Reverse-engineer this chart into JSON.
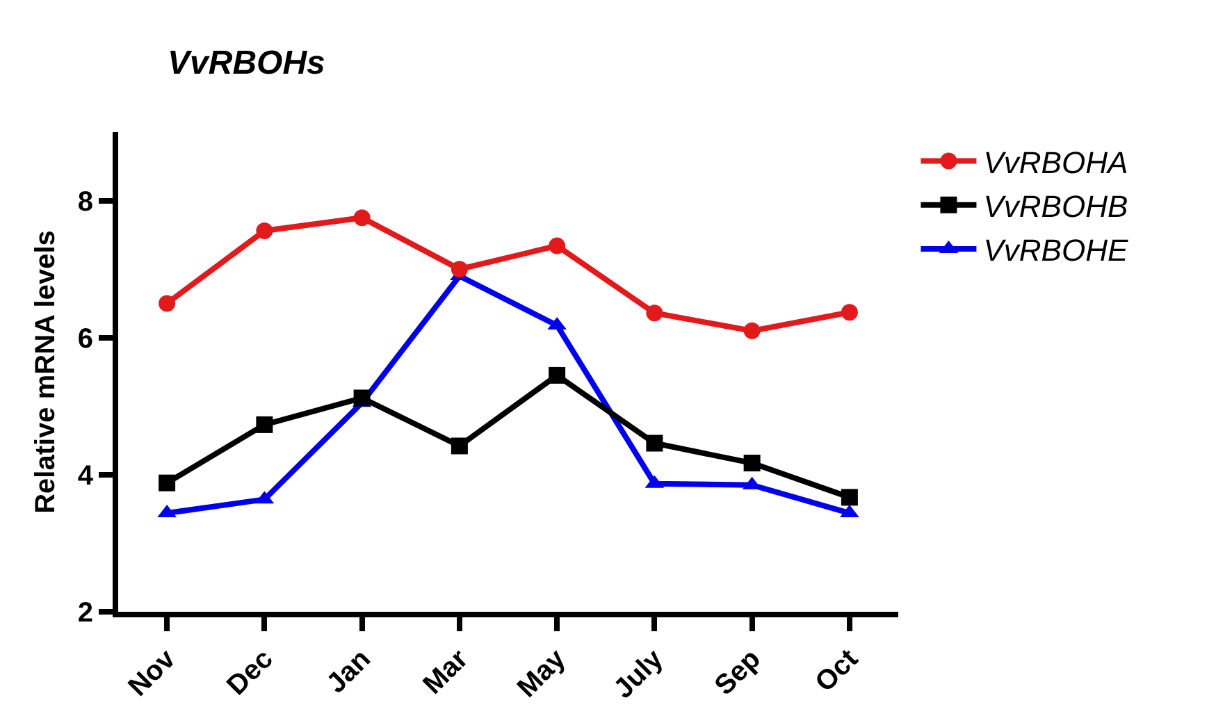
{
  "chart_data": {
    "type": "line",
    "title": "VvRBOHs",
    "ylabel": "Relative mRNA levels",
    "categories": [
      "Nov",
      "Dec",
      "Jan",
      "Mar",
      "May",
      "July",
      "Sep",
      "Oct"
    ],
    "series": [
      {
        "name": "VvRBOHA",
        "color": "#e31a1c",
        "marker": "circle",
        "values": [
          6.5,
          7.56,
          7.75,
          7.0,
          7.34,
          6.36,
          6.1,
          6.37
        ]
      },
      {
        "name": "VvRBOHB",
        "color": "#000000",
        "marker": "square",
        "values": [
          3.88,
          4.73,
          5.12,
          4.42,
          5.45,
          4.46,
          4.17,
          3.67
        ]
      },
      {
        "name": "VvRBOHE",
        "color": "#0000ee",
        "marker": "triangle",
        "values": [
          3.44,
          3.64,
          5.05,
          6.9,
          6.18,
          3.87,
          3.85,
          3.44
        ]
      }
    ],
    "ylim": [
      2,
      9
    ],
    "yticks": [
      2,
      4,
      6,
      8
    ],
    "grid": false,
    "legend": "top right",
    "line_style": "solid"
  }
}
